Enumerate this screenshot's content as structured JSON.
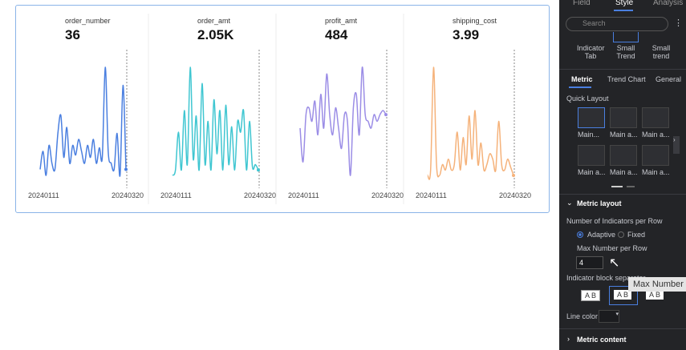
{
  "cards": [
    {
      "name": "order_number",
      "value": 36,
      "start": "20240111",
      "end": "20240320",
      "color": "#4a7fe0",
      "trend": [
        10,
        25,
        5,
        30,
        15,
        10,
        40,
        55,
        20,
        45,
        15,
        30,
        22,
        35,
        25,
        15,
        30,
        20,
        35,
        15,
        28,
        20,
        95,
        25,
        15,
        10,
        40,
        5,
        80,
        10
      ]
    },
    {
      "name": "order_amt",
      "value": "2.05K",
      "start": "20240111",
      "end": "20240320",
      "color": "#3fc6d1",
      "trend": [
        0,
        5,
        40,
        5,
        60,
        10,
        100,
        15,
        55,
        5,
        85,
        10,
        50,
        5,
        70,
        20,
        60,
        5,
        65,
        10,
        45,
        5,
        50,
        40,
        60,
        5,
        50,
        8,
        10,
        5
      ]
    },
    {
      "name": "profit_amt",
      "value": 484,
      "start": "20240111",
      "end": "20240320",
      "color": "#9b8de6",
      "trend": [
        45,
        20,
        55,
        60,
        50,
        65,
        40,
        70,
        45,
        85,
        55,
        40,
        60,
        45,
        30,
        55,
        50,
        10,
        60,
        70,
        40,
        90,
        55,
        50,
        45,
        55,
        50,
        55,
        58,
        55
      ]
    },
    {
      "name": "shipping_cost",
      "value": 3.99,
      "start": "20240111",
      "end": "20240320",
      "color": "#f5b27a",
      "trend": [
        0,
        5,
        100,
        10,
        0,
        10,
        5,
        15,
        5,
        10,
        40,
        5,
        35,
        10,
        55,
        15,
        60,
        10,
        30,
        5,
        10,
        20,
        15,
        5,
        50,
        10,
        5,
        15,
        8,
        0
      ]
    }
  ],
  "panel": {
    "tabs": [
      "Field",
      "Style",
      "Analysis"
    ],
    "search": "Search",
    "chart_types": [
      "Indicator Tab",
      "Small Trend",
      "Small trend"
    ],
    "subtabs": [
      "Metric",
      "Trend Chart",
      "General"
    ],
    "quick_layout": "Quick Layout",
    "layouts": [
      "Main...",
      "Main a...",
      "Main a...",
      "Main a...",
      "Main a...",
      "Main a..."
    ],
    "metric_layout": "Metric layout",
    "per_row": "Number of Indicators per Row",
    "adaptive": "Adaptive",
    "fixed": "Fixed",
    "max_per_row": "Max Number per Row",
    "max_value": 4,
    "separator": "Indicator block separator",
    "sep_options": [
      "A B",
      "A B",
      "A B"
    ],
    "line_color": "Line color",
    "metric_content": "Metric content",
    "tooltip": "Max Number"
  }
}
